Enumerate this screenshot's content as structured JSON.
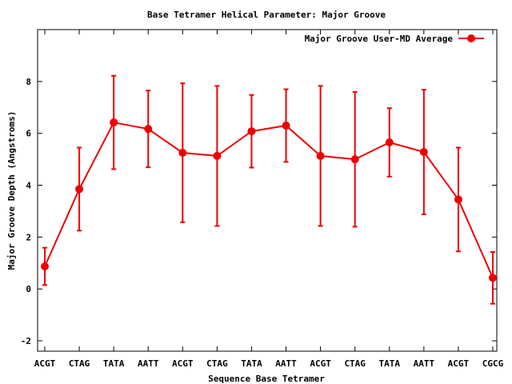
{
  "chart_data": {
    "type": "line",
    "title": "Base Tetramer Helical Parameter: Major Groove",
    "xlabel": "Sequence Base Tetramer",
    "ylabel": "Major Groove Depth (Angstroms)",
    "categories": [
      "ACGT",
      "CTAG",
      "TATA",
      "AATT",
      "ACGT",
      "CTAG",
      "TATA",
      "AATT",
      "ACGT",
      "CTAG",
      "TATA",
      "AATT",
      "ACGT",
      "CGCG"
    ],
    "ylim": [
      -2.4,
      10
    ],
    "yticks": [
      -2,
      0,
      2,
      4,
      6,
      8
    ],
    "grid": false,
    "legend_position": "top-right",
    "series": [
      {
        "name": "Major Groove User-MD Average",
        "color": "#ee0000",
        "marker": "circle",
        "values": [
          0.87,
          3.85,
          6.42,
          6.17,
          5.25,
          5.13,
          6.08,
          6.3,
          5.13,
          5.0,
          5.65,
          5.28,
          3.45,
          0.43
        ],
        "error": [
          0.72,
          1.6,
          1.8,
          1.48,
          2.68,
          2.7,
          1.4,
          1.4,
          2.7,
          2.6,
          1.32,
          2.4,
          2.0,
          1.0
        ]
      }
    ]
  }
}
